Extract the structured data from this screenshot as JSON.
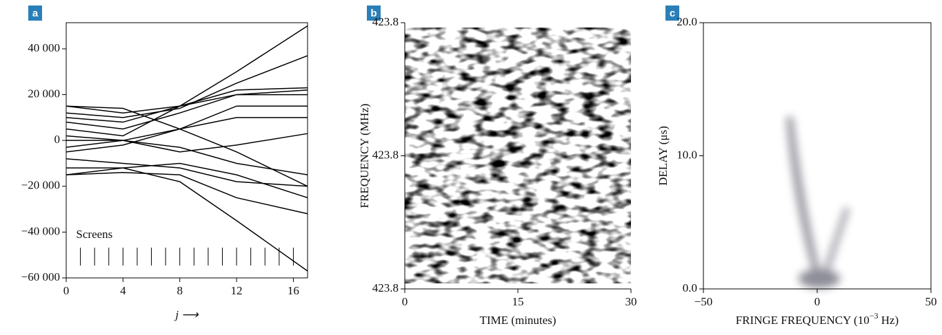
{
  "chart_data": [
    {
      "type": "line",
      "panel": "a",
      "x_label": "j ⟶",
      "annotation": "Screens",
      "screens": [
        1,
        2,
        3,
        4,
        5,
        6,
        7,
        8,
        9,
        10,
        11,
        12,
        13,
        14,
        15,
        16,
        17
      ],
      "x": [
        0,
        4,
        8,
        12,
        17
      ],
      "color": "#000000",
      "series": [
        {
          "values": [
            15000,
            12000,
            15000,
            30000,
            50000
          ]
        },
        {
          "values": [
            12000,
            10000,
            14000,
            25000,
            37000
          ]
        },
        {
          "values": [
            8000,
            5000,
            12000,
            20000,
            22000
          ]
        },
        {
          "values": [
            5000,
            2000,
            15000,
            20000,
            20000
          ]
        },
        {
          "values": [
            0,
            0,
            5000,
            15000,
            15000
          ]
        },
        {
          "values": [
            2000,
            0,
            -5000,
            -2000,
            3000
          ]
        },
        {
          "values": [
            -3000,
            0,
            -3000,
            -10000,
            -15000
          ]
        },
        {
          "values": [
            -8000,
            -10000,
            -12000,
            -18000,
            -20000
          ]
        },
        {
          "values": [
            -12000,
            -12000,
            -10000,
            -15000,
            -25000
          ]
        },
        {
          "values": [
            -15000,
            -14000,
            -15000,
            -25000,
            -32000
          ]
        },
        {
          "values": [
            -15000,
            -12000,
            -18000,
            -35000,
            -57000
          ]
        },
        {
          "values": [
            15000,
            14000,
            5000,
            -5000,
            -20000
          ]
        },
        {
          "values": [
            10000,
            8000,
            15000,
            22000,
            23000
          ]
        },
        {
          "values": [
            -5000,
            -2000,
            5000,
            10000,
            10000
          ]
        }
      ],
      "xlim": [
        0,
        17
      ],
      "xticks": [
        0,
        4,
        8,
        12,
        16
      ],
      "ylim": [
        -60000,
        51400
      ],
      "yticks": [
        {
          "value": -60000,
          "label": "−60 000"
        },
        {
          "value": -40000,
          "label": "−40 000"
        },
        {
          "value": -20000,
          "label": "−20 000"
        },
        0,
        {
          "value": 20000,
          "label": "20 000"
        },
        {
          "value": 40000,
          "label": "40 000"
        }
      ]
    },
    {
      "type": "image",
      "panel": "b",
      "x_label": "TIME (minutes)",
      "y_label": "FREQUENCY (MHz)",
      "xlim": [
        0,
        30
      ],
      "xticks": [
        0,
        15,
        30
      ],
      "ylim": [
        423.76,
        423.84
      ],
      "yticks": [
        {
          "value": 423.76,
          "label": "423.8"
        },
        {
          "value": 423.8,
          "label": "423.8"
        },
        {
          "value": 423.84,
          "label": "423.8"
        }
      ]
    },
    {
      "type": "image",
      "panel": "c",
      "x_label": "FRINGE FREQUENCY (10",
      "x_label_sup": "−3",
      "x_label_end": " Hz)",
      "y_label": "DELAY (μs)",
      "xlim": [
        -50,
        50
      ],
      "xticks": [
        {
          "value": -50,
          "label": "−50"
        },
        0,
        50
      ],
      "ylim": [
        0,
        20
      ],
      "yticks": [
        {
          "value": 0,
          "label": "0.0"
        },
        {
          "value": 10,
          "label": "10.0"
        },
        {
          "value": 20,
          "label": "20.0"
        }
      ]
    }
  ]
}
